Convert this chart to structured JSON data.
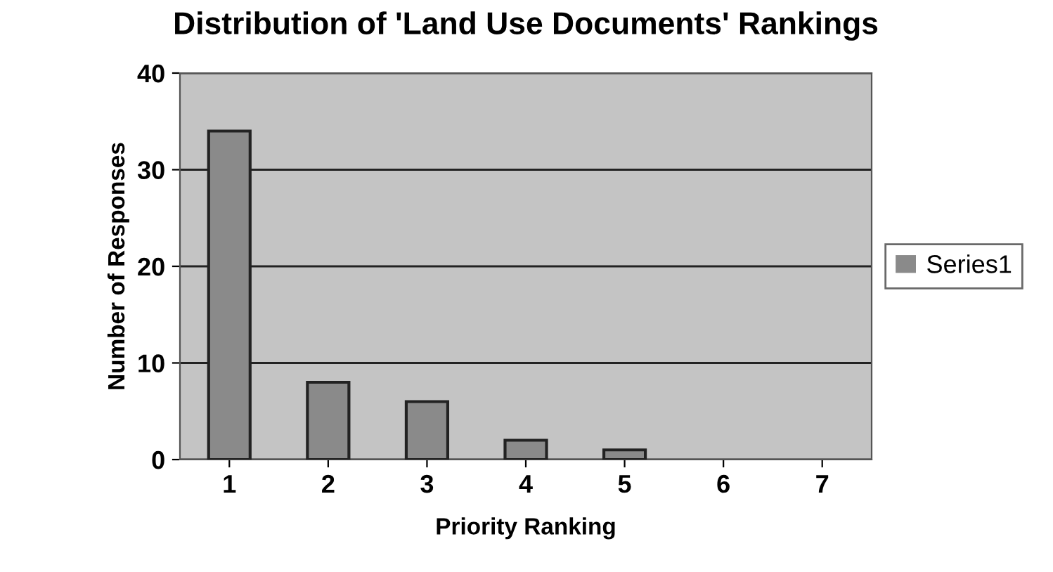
{
  "chart_data": {
    "type": "bar",
    "title": "Distribution of 'Land Use Documents' Rankings",
    "xlabel": "Priority Ranking",
    "ylabel": "Number of Responses",
    "categories": [
      "1",
      "2",
      "3",
      "4",
      "5",
      "6",
      "7"
    ],
    "series": [
      {
        "name": "Series1",
        "color": "#8a8a8a",
        "values": [
          34,
          8,
          6,
          2,
          1,
          0,
          0
        ]
      }
    ],
    "ylim": [
      0,
      40
    ],
    "yticks": [
      0,
      10,
      20,
      30,
      40
    ],
    "grid": "y",
    "legend": "right"
  }
}
